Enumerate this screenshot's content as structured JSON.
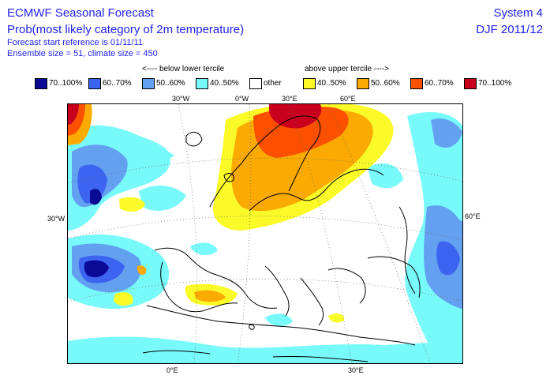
{
  "header": {
    "title_line1": "ECMWF Seasonal Forecast",
    "title_line2": "Prob(most likely category of 2m temperature)",
    "info_line1": "Forecast start reference is 01/11/11",
    "info_line2": "Ensemble size = 51, climate size = 450",
    "system": "System 4",
    "season": "DJF 2011/12"
  },
  "legend": {
    "below_label": "<---- below lower tercile",
    "above_label": "above upper tercile ---->",
    "items": [
      {
        "label": "70..100%",
        "color": "#0a0a96"
      },
      {
        "label": "60..70%",
        "color": "#3c64f0"
      },
      {
        "label": "50..60%",
        "color": "#64a0f0"
      },
      {
        "label": "40..50%",
        "color": "#78fafa"
      },
      {
        "label": "other",
        "color": "#ffffff"
      },
      {
        "label": "40..50%",
        "color": "#fafa28"
      },
      {
        "label": "50..60%",
        "color": "#faaa00"
      },
      {
        "label": "60..70%",
        "color": "#fa5000"
      },
      {
        "label": "70..100%",
        "color": "#c8001e"
      }
    ]
  },
  "map": {
    "lon_labels_top": [
      "30°W",
      "0°W",
      "30°E",
      "60°E"
    ],
    "lon_labels_bottom": [
      "0°E",
      "30°E"
    ],
    "lat_labels_left": [
      "30°W"
    ],
    "lat_labels_right": [
      "60°E"
    ]
  }
}
